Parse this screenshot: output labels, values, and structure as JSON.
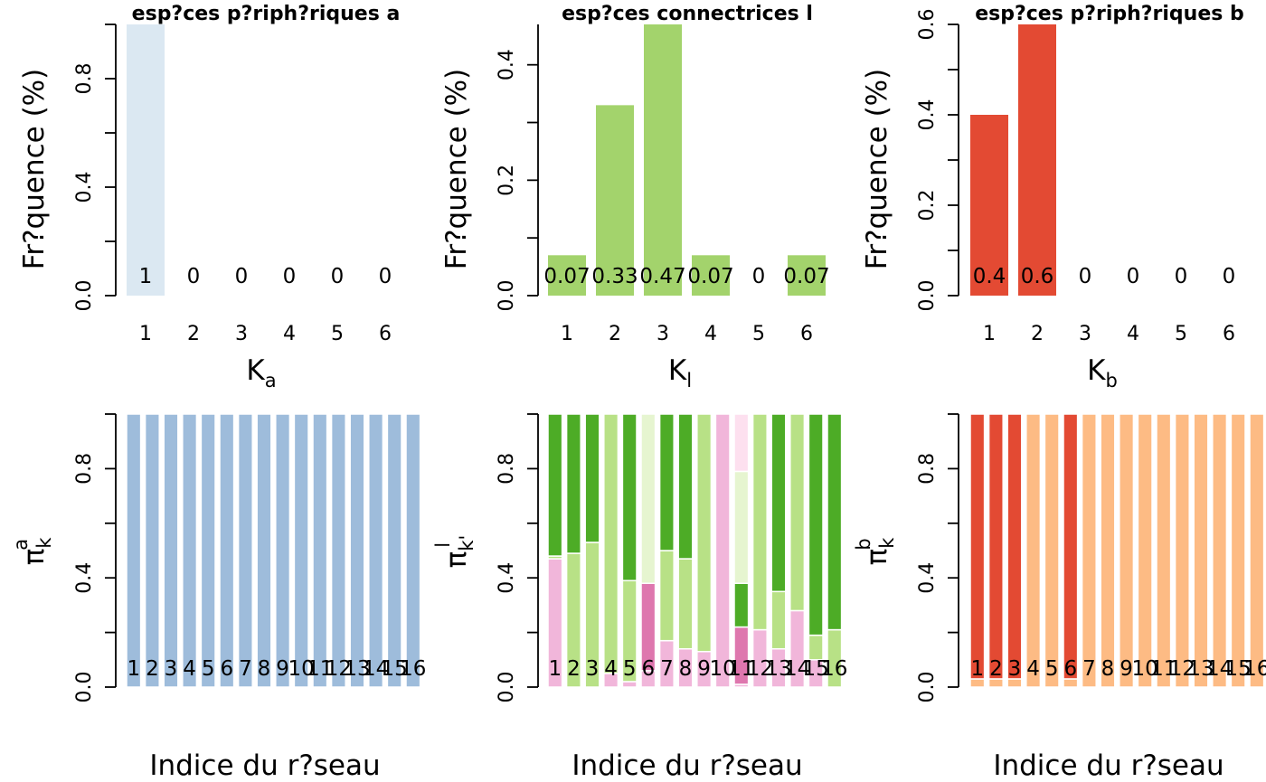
{
  "colors": {
    "periph_a": "#dbe8f2",
    "connect": "#a3d36c",
    "periph_b": "#e34a33",
    "pi_a": "#9ebcdb",
    "pi_l": [
      "#f1b6da",
      "#de77ae",
      "#b8e186",
      "#4dac26",
      "#e6f5d0",
      "#fde0ef"
    ],
    "pi_b": [
      "#fdbb84",
      "#e34a33"
    ]
  },
  "chart_data": [
    {
      "type": "bar",
      "title": "esp?ces p?riph?riques a",
      "xlabel_main": "K",
      "xlabel_sub": "a",
      "ylabel": "Fr?quence (%)",
      "categories": [
        "1",
        "2",
        "3",
        "4",
        "5",
        "6"
      ],
      "values": [
        1,
        0,
        0,
        0,
        0,
        0
      ],
      "data_labels": [
        "1",
        "0",
        "0",
        "0",
        "0",
        "0"
      ],
      "ylim": [
        0,
        1
      ],
      "yticks": [
        "0.0",
        "0.4",
        "0.8"
      ],
      "color_key": "periph_a"
    },
    {
      "type": "bar",
      "title": "esp?ces connectrices l",
      "xlabel_main": "K",
      "xlabel_sub": "l",
      "ylabel": "Fr?quence (%)",
      "categories": [
        "1",
        "2",
        "3",
        "4",
        "5",
        "6"
      ],
      "values": [
        0.07,
        0.33,
        0.47,
        0.07,
        0,
        0.07
      ],
      "data_labels": [
        "0.07",
        "0.33",
        "0.47",
        "0.07",
        "0",
        "0.07"
      ],
      "ylim": [
        0,
        0.47
      ],
      "yticks": [
        "0.0",
        "0.2",
        "0.4"
      ],
      "color_key": "connect"
    },
    {
      "type": "bar",
      "title": "esp?ces p?riph?riques b",
      "xlabel_main": "K",
      "xlabel_sub": "b",
      "ylabel": "Fr?quence (%)",
      "categories": [
        "1",
        "2",
        "3",
        "4",
        "5",
        "6"
      ],
      "values": [
        0.4,
        0.6,
        0,
        0,
        0,
        0
      ],
      "data_labels": [
        "0.4",
        "0.6",
        "0",
        "0",
        "0",
        "0"
      ],
      "ylim": [
        0,
        0.6
      ],
      "yticks": [
        "0.0",
        "0.2",
        "0.4",
        "0.6"
      ],
      "color_key": "periph_b"
    },
    {
      "type": "bar",
      "stacked": true,
      "xlabel": "Indice du r?seau",
      "ylabel_main": "π",
      "ylabel_sub": "k",
      "ylabel_sup": "a",
      "categories": [
        "1",
        "2",
        "3",
        "4",
        "5",
        "6",
        "7",
        "8",
        "9",
        "10",
        "11",
        "12",
        "13",
        "14",
        "15",
        "16"
      ],
      "series": [
        {
          "values": [
            1,
            1,
            1,
            1,
            1,
            1,
            1,
            1,
            1,
            1,
            1,
            1,
            1,
            1,
            1,
            1
          ]
        }
      ],
      "ylim": [
        0,
        1
      ],
      "yticks": [
        "0.0",
        "0.4",
        "0.8"
      ],
      "color_key": "pi_a"
    },
    {
      "type": "bar",
      "stacked": true,
      "xlabel": "Indice du r?seau",
      "ylabel_main": "π",
      "ylabel_sub": "k'",
      "ylabel_sup": "l",
      "categories": [
        "1",
        "2",
        "3",
        "4",
        "5",
        "6",
        "7",
        "8",
        "9",
        "10",
        "11",
        "12",
        "13",
        "14",
        "15",
        "16"
      ],
      "series": [
        {
          "values": [
            0.47,
            0,
            0,
            0.05,
            0.02,
            0.06,
            0.17,
            0.14,
            0.13,
            1.0,
            0.01,
            0.21,
            0.14,
            0.28,
            0.1,
            0
          ]
        },
        {
          "values": [
            0,
            0,
            0,
            0,
            0,
            0.32,
            0,
            0,
            0,
            0,
            0.21,
            0,
            0,
            0,
            0,
            0
          ]
        },
        {
          "values": [
            0.01,
            0.49,
            0.53,
            0.95,
            0.37,
            0,
            0.33,
            0.33,
            0.87,
            0,
            0,
            0.79,
            0.21,
            0.72,
            0.09,
            0.21
          ]
        },
        {
          "values": [
            0.52,
            0.51,
            0.47,
            0,
            0.61,
            0,
            0.5,
            0.53,
            0,
            0,
            0.16,
            0,
            0.65,
            0,
            0.81,
            0.79
          ]
        },
        {
          "values": [
            0,
            0,
            0,
            0,
            0,
            0.62,
            0,
            0,
            0,
            0,
            0.41,
            0,
            0,
            0,
            0,
            0
          ]
        },
        {
          "values": [
            0,
            0,
            0,
            0,
            0,
            0,
            0,
            0,
            0,
            0,
            0.21,
            0,
            0,
            0,
            0,
            0
          ]
        }
      ],
      "ylim": [
        0,
        1
      ],
      "yticks": [
        "0.0",
        "0.4",
        "0.8"
      ],
      "color_key": "pi_l"
    },
    {
      "type": "bar",
      "stacked": true,
      "xlabel": "Indice du r?seau",
      "ylabel_main": "π",
      "ylabel_sub": "k",
      "ylabel_sup": "b",
      "categories": [
        "1",
        "2",
        "3",
        "4",
        "5",
        "6",
        "7",
        "8",
        "9",
        "10",
        "11",
        "12",
        "13",
        "14",
        "15",
        "16"
      ],
      "series": [
        {
          "values": [
            0.03,
            0.03,
            0.03,
            1,
            1,
            0.03,
            1,
            1,
            1,
            1,
            1,
            1,
            1,
            1,
            1,
            1
          ]
        },
        {
          "values": [
            0.97,
            0.97,
            0.97,
            0,
            0,
            0.97,
            0,
            0,
            0,
            0,
            0,
            0,
            0,
            0,
            0,
            0
          ]
        }
      ],
      "ylim": [
        0,
        1
      ],
      "yticks": [
        "0.0",
        "0.4",
        "0.8"
      ],
      "color_key": "pi_b"
    }
  ]
}
